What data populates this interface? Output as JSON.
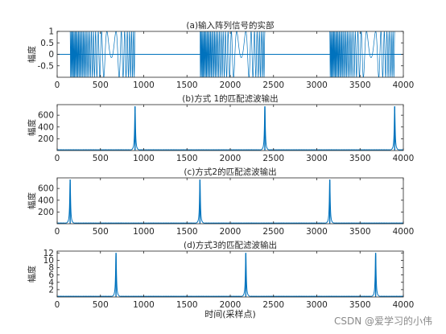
{
  "figure_xlabel": "时间(采样点)",
  "watermark": "CSDN @爱学习的小伟",
  "colors": {
    "series": "#0072bd",
    "axis": "#262626",
    "background": "#ffffff"
  },
  "chart_data": [
    {
      "type": "line",
      "title": "(a)输入阵列信号的实部",
      "ylabel": "幅度",
      "xlim": [
        0,
        4000
      ],
      "ylim": [
        -1,
        1
      ],
      "xticks": [
        0,
        500,
        1000,
        1500,
        2000,
        2500,
        3000,
        3500,
        4000
      ],
      "yticks": [
        -0.5,
        0,
        0.5,
        1
      ],
      "grid": false,
      "signal": {
        "kind": "chirp_bursts",
        "amplitude": 1,
        "baseline": 0,
        "bursts": [
          [
            150,
            900
          ],
          [
            1650,
            2400
          ],
          [
            3150,
            3900
          ]
        ]
      }
    },
    {
      "type": "line",
      "title": "(b)方式 1的匹配滤波输出",
      "ylabel": "幅度",
      "xlim": [
        0,
        4000
      ],
      "ylim": [
        0,
        780
      ],
      "xticks": [
        0,
        500,
        1000,
        1500,
        2000,
        2500,
        3000,
        3500,
        4000
      ],
      "yticks": [
        200,
        400,
        600
      ],
      "grid": false,
      "peaks": [
        {
          "x": 900,
          "y": 750
        },
        {
          "x": 2400,
          "y": 750
        },
        {
          "x": 3900,
          "y": 750
        }
      ]
    },
    {
      "type": "line",
      "title": "(c)方式2的匹配滤波输出",
      "ylabel": "幅度",
      "xlim": [
        0,
        4000
      ],
      "ylim": [
        0,
        780
      ],
      "xticks": [
        0,
        500,
        1000,
        1500,
        2000,
        2500,
        3000,
        3500,
        4000
      ],
      "yticks": [
        200,
        400,
        600
      ],
      "grid": false,
      "peaks": [
        {
          "x": 150,
          "y": 750
        },
        {
          "x": 1650,
          "y": 750
        },
        {
          "x": 3150,
          "y": 750
        }
      ]
    },
    {
      "type": "line",
      "title": "(d)方式3的匹配滤波输出",
      "ylabel": "幅度",
      "xlim": [
        0,
        4000
      ],
      "ylim": [
        0,
        12.5
      ],
      "xticks": [
        0,
        500,
        1000,
        1500,
        2000,
        2500,
        3000,
        3500,
        4000
      ],
      "yticks": [
        2,
        4,
        6,
        8,
        10,
        12
      ],
      "grid": false,
      "peaks": [
        {
          "x": 680,
          "y": 12
        },
        {
          "x": 2180,
          "y": 12
        },
        {
          "x": 3680,
          "y": 12
        }
      ]
    }
  ]
}
